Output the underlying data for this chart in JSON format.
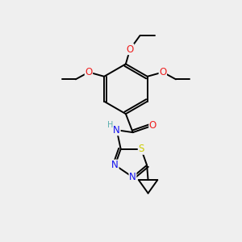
{
  "background_color": "#efefef",
  "fig_width": 3.0,
  "fig_height": 3.0,
  "dpi": 100,
  "atom_colors": {
    "C": "#000000",
    "N": "#1010ee",
    "O": "#ee2020",
    "S": "#cccc00",
    "H": "#5aafaf"
  },
  "bond_color": "#000000",
  "bond_width": 1.4,
  "font_size": 8.5,
  "xlim": [
    0,
    10
  ],
  "ylim": [
    0,
    10
  ]
}
